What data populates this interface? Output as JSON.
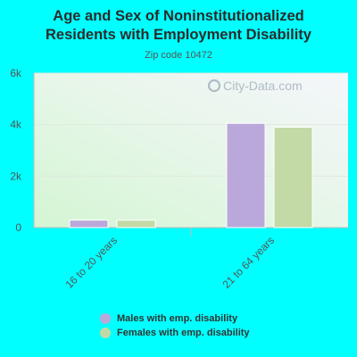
{
  "chart_data": {
    "type": "bar",
    "title_lines": [
      "Age and Sex of Noninstitutionalized",
      "Residents with Employment Disability"
    ],
    "subtitle": "Zip code 10472",
    "categories": [
      "16 to 20 years",
      "21 to 64 years"
    ],
    "series": [
      {
        "name": "Males with emp. disability",
        "color": "#bba8da",
        "values": [
          290,
          4050
        ]
      },
      {
        "name": "Females with emp. disability",
        "color": "#c3d9a6",
        "values": [
          285,
          3900
        ]
      }
    ],
    "ylim": [
      0,
      6000
    ],
    "yticks": [
      0,
      2000,
      4000,
      6000
    ],
    "ytick_labels": [
      "0",
      "2k",
      "4k",
      "6k"
    ],
    "grid": true,
    "legend_position": "bottom",
    "watermark": "City-Data.com"
  }
}
